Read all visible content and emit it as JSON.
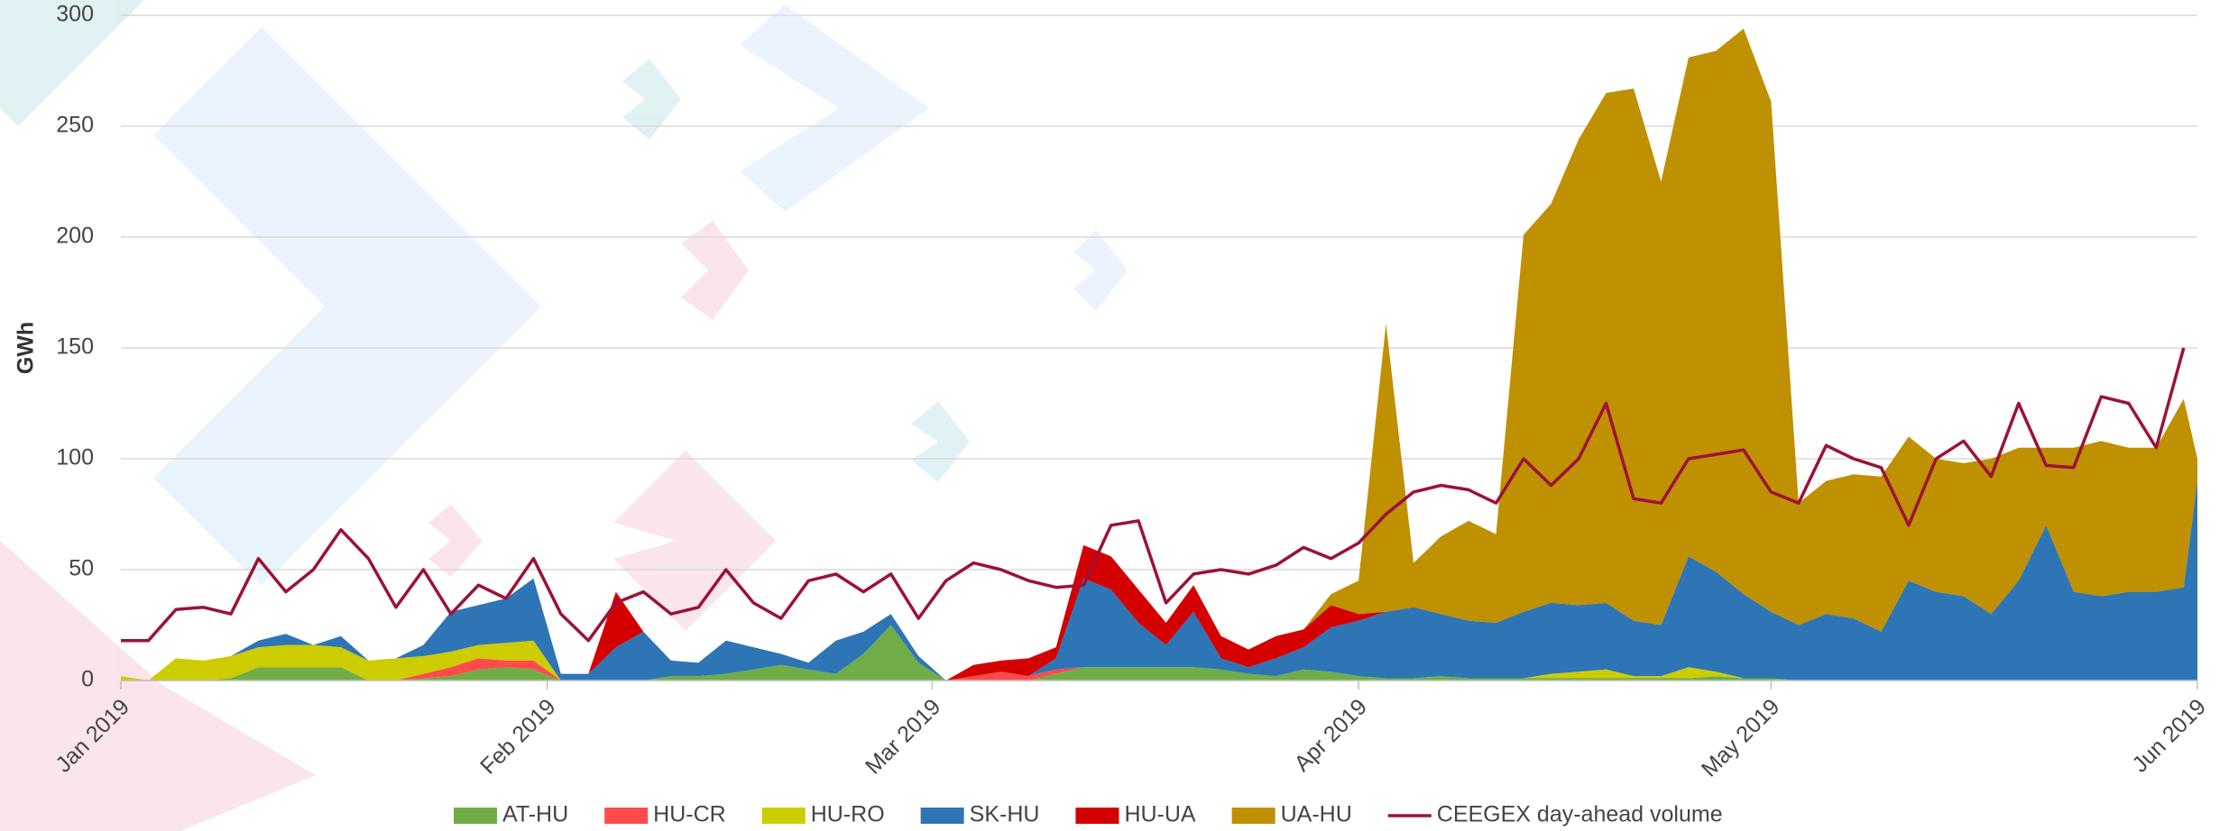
{
  "chart_data": {
    "type": "area",
    "y_label": "GWh",
    "x": [
      0,
      2,
      4,
      6,
      8,
      10,
      12,
      14,
      16,
      18,
      20,
      22,
      24,
      26,
      28,
      30,
      32,
      34,
      36,
      38,
      40,
      42,
      44,
      46,
      48,
      50,
      52,
      54,
      56,
      58,
      60,
      62,
      64,
      66,
      68,
      70,
      72,
      74,
      76,
      78,
      80,
      82,
      84,
      86,
      88,
      90,
      92,
      94,
      96,
      98,
      100,
      102,
      104,
      106,
      108,
      110,
      112,
      114,
      116,
      118,
      120,
      122,
      124,
      126,
      128,
      130,
      132,
      134,
      136,
      138,
      140,
      142,
      144,
      146,
      148,
      150,
      151
    ],
    "xlim": [
      0,
      151
    ],
    "xticks": [
      {
        "value": 0,
        "label": "Jan 2019"
      },
      {
        "value": 31,
        "label": "Feb 2019"
      },
      {
        "value": 59,
        "label": "Mar 2019"
      },
      {
        "value": 90,
        "label": "Apr 2019"
      },
      {
        "value": 120,
        "label": "May 2019"
      },
      {
        "value": 151,
        "label": "Jun 2019"
      }
    ],
    "ylim": [
      0,
      300
    ],
    "yticks": [
      0,
      50,
      100,
      150,
      200,
      250,
      300
    ],
    "grid": true,
    "stacked": true,
    "legend": "bottom",
    "series": [
      {
        "name": "AT-HU",
        "color": "#70ad47",
        "values": [
          0,
          0,
          0,
          0,
          1,
          6,
          6,
          6,
          6,
          0,
          0,
          1,
          2,
          5,
          6,
          5,
          0,
          0,
          0,
          0,
          2,
          2,
          3,
          5,
          7,
          5,
          3,
          12,
          25,
          8,
          0,
          0,
          0,
          0,
          3,
          6,
          6,
          6,
          6,
          6,
          5,
          3,
          2,
          5,
          4,
          2,
          1,
          1,
          2,
          1,
          1,
          1,
          1,
          1,
          1,
          1,
          1,
          1,
          2,
          1,
          1,
          0,
          0,
          0,
          0,
          0,
          0,
          0,
          0,
          0,
          0,
          0,
          0,
          0,
          0,
          0,
          0
        ]
      },
      {
        "name": "HU-CR",
        "color": "#ff4b4b",
        "values": [
          0,
          0,
          0,
          0,
          0,
          0,
          0,
          0,
          0,
          0,
          0,
          2,
          4,
          5,
          3,
          4,
          0,
          0,
          0,
          0,
          0,
          0,
          0,
          0,
          0,
          0,
          0,
          0,
          0,
          0,
          0,
          2,
          4,
          2,
          2,
          0,
          0,
          0,
          0,
          0,
          0,
          0,
          0,
          0,
          0,
          0,
          0,
          0,
          0,
          0,
          0,
          0,
          0,
          0,
          0,
          0,
          0,
          0,
          0,
          0,
          0,
          0,
          0,
          0,
          0,
          0,
          0,
          0,
          0,
          0,
          0,
          0,
          0,
          0,
          0,
          0,
          0
        ]
      },
      {
        "name": "HU-RO",
        "color": "#cccc00",
        "values": [
          2,
          0,
          10,
          9,
          10,
          9,
          10,
          10,
          9,
          9,
          10,
          8,
          7,
          6,
          8,
          9,
          0,
          0,
          0,
          0,
          0,
          0,
          0,
          0,
          0,
          0,
          0,
          0,
          0,
          0,
          0,
          0,
          0,
          0,
          0,
          0,
          0,
          0,
          0,
          0,
          0,
          0,
          0,
          0,
          0,
          0,
          0,
          0,
          0,
          0,
          0,
          0,
          2,
          3,
          4,
          1,
          1,
          5,
          2,
          0,
          0,
          0,
          0,
          0,
          0,
          0,
          0,
          0,
          0,
          0,
          0,
          0,
          0,
          0,
          0,
          0,
          0
        ]
      },
      {
        "name": "SK-HU",
        "color": "#2e75b6",
        "values": [
          0,
          0,
          0,
          0,
          0,
          3,
          5,
          0,
          5,
          0,
          0,
          5,
          18,
          18,
          20,
          28,
          3,
          3,
          15,
          22,
          7,
          6,
          15,
          10,
          5,
          3,
          15,
          10,
          5,
          3,
          0,
          0,
          0,
          0,
          5,
          40,
          35,
          20,
          10,
          25,
          5,
          3,
          8,
          10,
          20,
          25,
          30,
          32,
          28,
          26,
          25,
          30,
          32,
          30,
          30,
          25,
          23,
          50,
          45,
          38,
          30,
          25,
          30,
          28,
          22,
          45,
          40,
          38,
          30,
          45,
          70,
          40,
          38,
          40,
          40,
          42,
          90
        ]
      },
      {
        "name": "HU-UA",
        "color": "#d40000",
        "values": [
          0,
          0,
          0,
          0,
          0,
          0,
          0,
          0,
          0,
          0,
          0,
          0,
          0,
          0,
          0,
          0,
          0,
          0,
          25,
          0,
          0,
          0,
          0,
          0,
          0,
          0,
          0,
          0,
          0,
          0,
          0,
          5,
          5,
          8,
          5,
          15,
          15,
          15,
          10,
          12,
          10,
          8,
          10,
          8,
          10,
          3,
          0,
          0,
          0,
          0,
          0,
          0,
          0,
          0,
          0,
          0,
          0,
          0,
          0,
          0,
          0,
          0,
          0,
          0,
          0,
          0,
          0,
          0,
          0,
          0,
          0,
          0,
          0,
          0,
          0,
          0,
          0
        ]
      },
      {
        "name": "UA-HU",
        "color": "#bf9000",
        "values": [
          0,
          0,
          0,
          0,
          0,
          0,
          0,
          0,
          0,
          0,
          0,
          0,
          0,
          0,
          0,
          0,
          0,
          0,
          0,
          0,
          0,
          0,
          0,
          0,
          0,
          0,
          0,
          0,
          0,
          0,
          0,
          0,
          0,
          0,
          0,
          0,
          0,
          0,
          0,
          0,
          0,
          0,
          0,
          0,
          5,
          15,
          130,
          20,
          35,
          45,
          40,
          170,
          180,
          210,
          230,
          240,
          200,
          225,
          235,
          255,
          230,
          55,
          60,
          65,
          70,
          65,
          60,
          60,
          70,
          60,
          35,
          65,
          70,
          65,
          65,
          85,
          10
        ]
      },
      {
        "name": "CEEGEX day-ahead volume",
        "color": "#9b1239",
        "type": "line",
        "values": [
          18,
          18,
          32,
          33,
          30,
          55,
          40,
          50,
          68,
          55,
          33,
          50,
          30,
          43,
          37,
          55,
          30,
          18,
          35,
          40,
          30,
          33,
          50,
          35,
          28,
          45,
          48,
          40,
          48,
          28,
          45,
          53,
          50,
          45,
          42,
          43,
          70,
          72,
          35,
          48,
          50,
          48,
          52,
          60,
          55,
          62,
          75,
          85,
          88,
          86,
          80,
          100,
          88,
          100,
          125,
          82,
          80,
          100,
          102,
          104,
          85,
          80,
          106,
          100,
          96,
          70,
          100,
          108,
          92,
          125,
          97,
          96,
          128,
          125,
          105,
          150,
          null
        ]
      }
    ]
  }
}
